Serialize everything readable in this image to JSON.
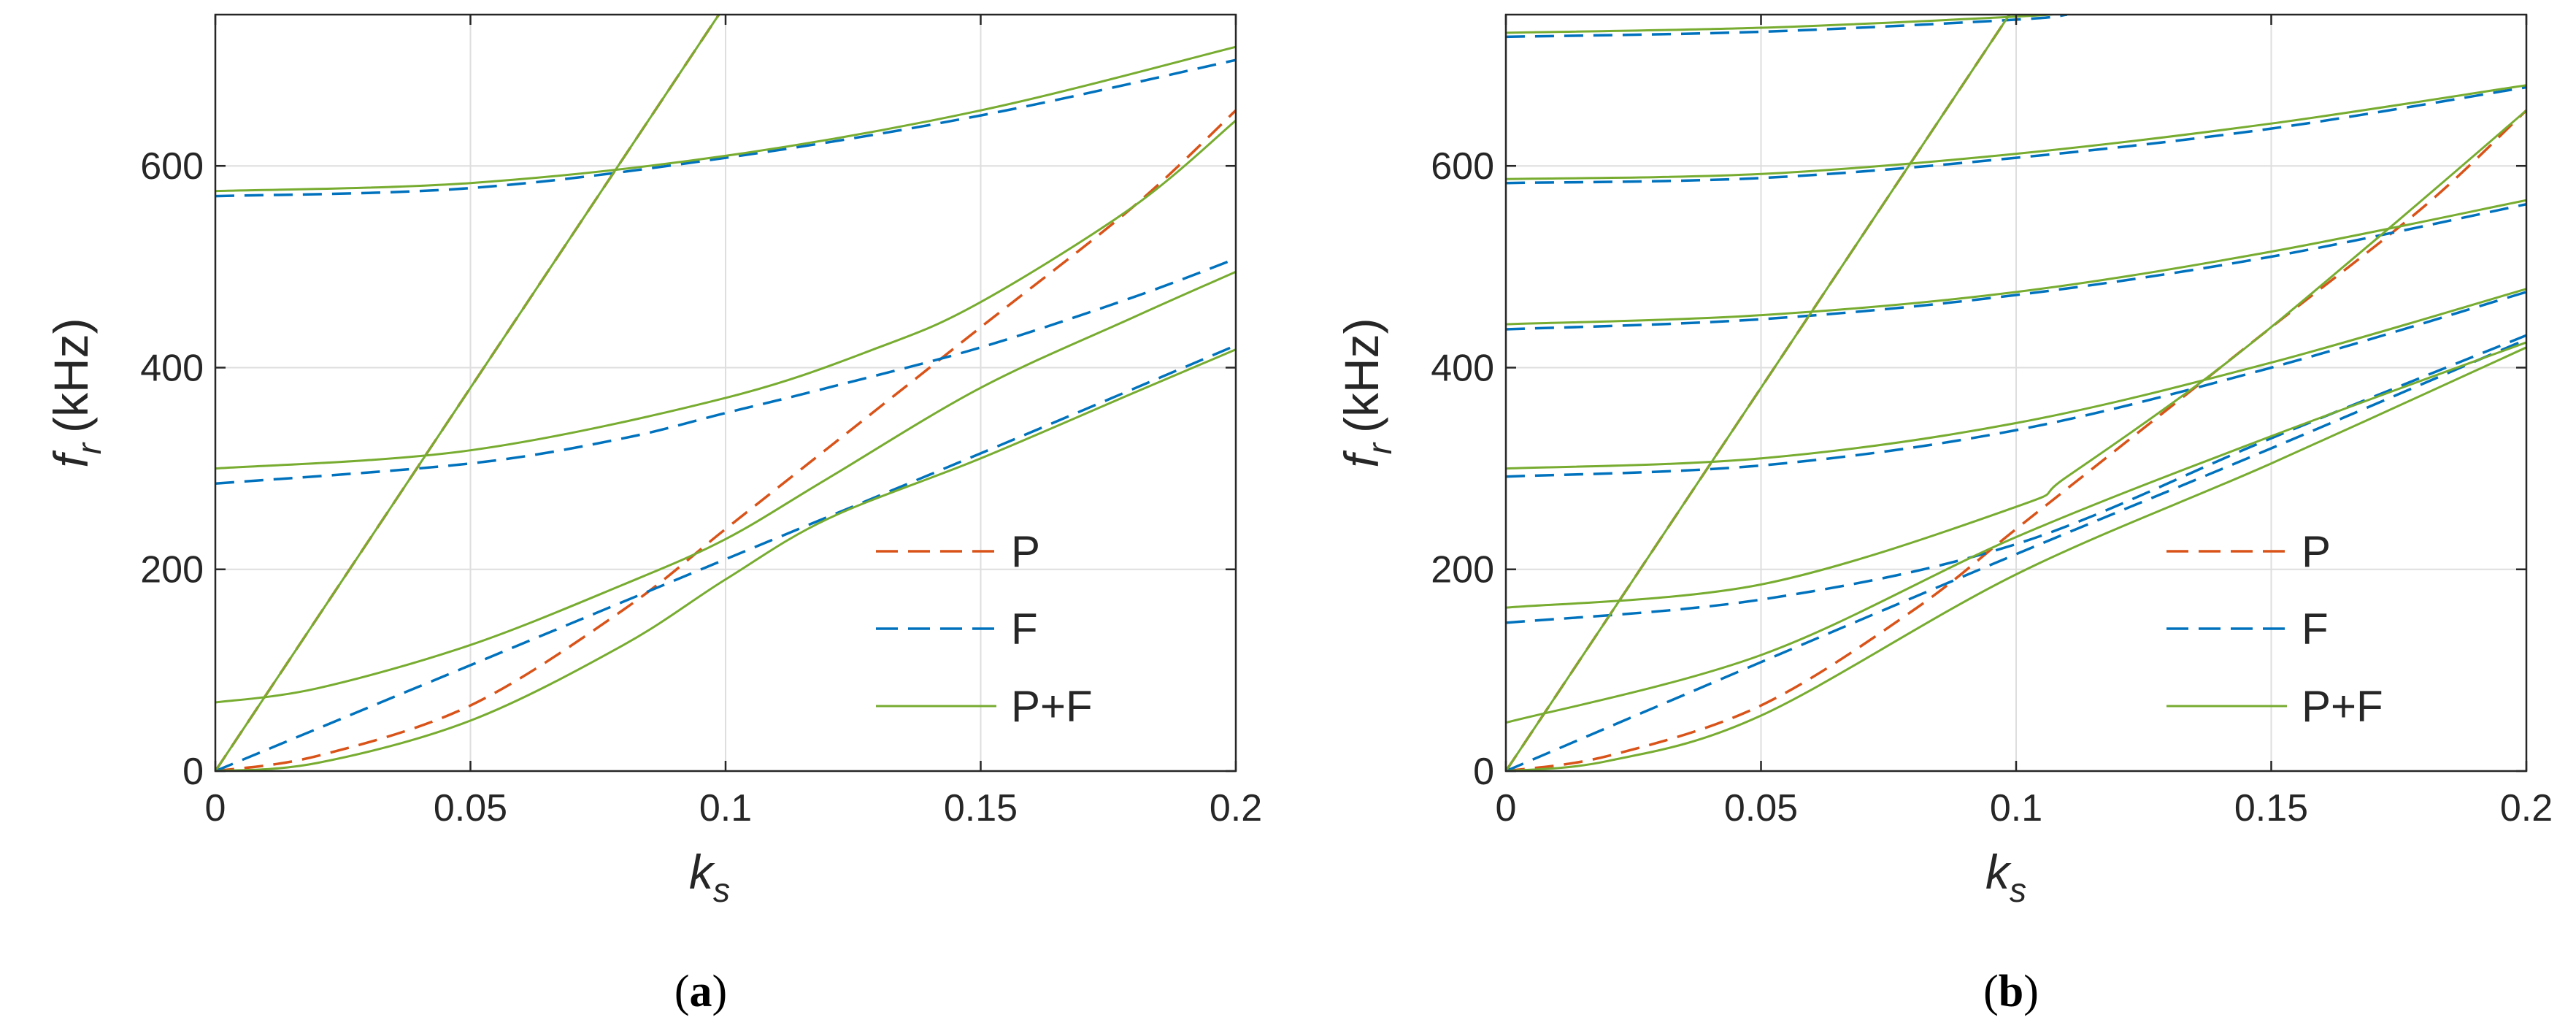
{
  "chart_data": [
    {
      "type": "line",
      "panel_label": "(a)",
      "panel_label_parts": {
        "open": "(",
        "letter": "a",
        "close": ")"
      },
      "ylabel": "f_r (kHz)",
      "ylabel_parts": {
        "main": "f",
        "sub": "r",
        "units": "(kHz)"
      },
      "xlabel": "k_s",
      "xlabel_parts": {
        "main": "k",
        "sub": "s"
      },
      "xlim": [
        0,
        0.2
      ],
      "ylim": [
        0,
        750
      ],
      "xticks": [
        0,
        0.05,
        0.1,
        0.15,
        0.2
      ],
      "xtick_labels": [
        "0",
        "0.05",
        "0.1",
        "0.15",
        "0.2"
      ],
      "yticks": [
        0,
        200,
        400,
        600
      ],
      "ytick_labels": [
        "0",
        "200",
        "400",
        "600"
      ],
      "grid": true,
      "legend_position": "right",
      "legend": [
        {
          "label": "P",
          "color": "#D95319",
          "style": "dashed"
        },
        {
          "label": "F",
          "color": "#0072BD",
          "style": "dashed"
        },
        {
          "label": "P+F",
          "color": "#77AC30",
          "style": "solid"
        }
      ],
      "series": [
        {
          "name": "P",
          "color": "#D95319",
          "style": "dashed",
          "curves": [
            {
              "x": [
                0,
                0.1
              ],
              "y": [
                0,
                760
              ]
            },
            {
              "x": [
                0,
                0.02,
                0.05,
                0.08,
                0.1,
                0.12,
                0.15,
                0.18,
                0.2
              ],
              "y": [
                0,
                15,
                65,
                160,
                240,
                320,
                440,
                560,
                655
              ]
            }
          ]
        },
        {
          "name": "F",
          "color": "#0072BD",
          "style": "dashed",
          "curves": [
            {
              "x": [
                0,
                0.05,
                0.1,
                0.15,
                0.2
              ],
              "y": [
                570,
                578,
                608,
                650,
                705
              ]
            },
            {
              "x": [
                0,
                0.05,
                0.08,
                0.1,
                0.12,
                0.15,
                0.18,
                0.2
              ],
              "y": [
                285,
                305,
                330,
                355,
                380,
                420,
                470,
                508
              ]
            },
            {
              "x": [
                0,
                0.05,
                0.1,
                0.15,
                0.2
              ],
              "y": [
                0,
                105,
                210,
                315,
                422
              ]
            }
          ]
        },
        {
          "name": "P+F",
          "color": "#77AC30",
          "style": "solid",
          "curves": [
            {
              "x": [
                0,
                0.1
              ],
              "y": [
                0,
                760
              ]
            },
            {
              "x": [
                0,
                0.05,
                0.1,
                0.15,
                0.2
              ],
              "y": [
                575,
                583,
                610,
                655,
                718
              ]
            },
            {
              "x": [
                0,
                0.05,
                0.1,
                0.13,
                0.15,
                0.18,
                0.2
              ],
              "y": [
                300,
                318,
                370,
                420,
                465,
                560,
                645
              ]
            },
            {
              "x": [
                0,
                0.02,
                0.05,
                0.08,
                0.1,
                0.12,
                0.15,
                0.18,
                0.2
              ],
              "y": [
                68,
                82,
                125,
                185,
                230,
                290,
                380,
                450,
                495
              ]
            },
            {
              "x": [
                0,
                0.02,
                0.05,
                0.08,
                0.1,
                0.12,
                0.15,
                0.18,
                0.2
              ],
              "y": [
                0,
                8,
                50,
                125,
                190,
                250,
                310,
                375,
                418
              ]
            }
          ]
        }
      ]
    },
    {
      "type": "line",
      "panel_label": "(b)",
      "panel_label_parts": {
        "open": "(",
        "letter": "b",
        "close": ")"
      },
      "ylabel": "f_r (kHz)",
      "ylabel_parts": {
        "main": "f",
        "sub": "r",
        "units": "(kHz)"
      },
      "xlabel": "k_s",
      "xlabel_parts": {
        "main": "k",
        "sub": "s"
      },
      "xlim": [
        0,
        0.2
      ],
      "ylim": [
        0,
        750
      ],
      "xticks": [
        0,
        0.05,
        0.1,
        0.15,
        0.2
      ],
      "xtick_labels": [
        "0",
        "0.05",
        "0.1",
        "0.15",
        "0.2"
      ],
      "yticks": [
        0,
        200,
        400,
        600
      ],
      "ytick_labels": [
        "0",
        "200",
        "400",
        "600"
      ],
      "grid": true,
      "legend_position": "right",
      "legend": [
        {
          "label": "P",
          "color": "#D95319",
          "style": "dashed"
        },
        {
          "label": "F",
          "color": "#0072BD",
          "style": "dashed"
        },
        {
          "label": "P+F",
          "color": "#77AC30",
          "style": "solid"
        }
      ],
      "series": [
        {
          "name": "P",
          "color": "#D95319",
          "style": "dashed",
          "curves": [
            {
              "x": [
                0,
                0.1
              ],
              "y": [
                0,
                760
              ]
            },
            {
              "x": [
                0,
                0.02,
                0.05,
                0.08,
                0.1,
                0.12,
                0.15,
                0.18,
                0.2
              ],
              "y": [
                0,
                15,
                65,
                160,
                240,
                320,
                440,
                560,
                655
              ]
            }
          ]
        },
        {
          "name": "F",
          "color": "#0072BD",
          "style": "dashed",
          "curves": [
            {
              "x": [
                0,
                0.05,
                0.1,
                0.11
              ],
              "y": [
                728,
                733,
                745,
                750
              ]
            },
            {
              "x": [
                0,
                0.05,
                0.1,
                0.15,
                0.2
              ],
              "y": [
                583,
                588,
                608,
                637,
                678
              ]
            },
            {
              "x": [
                0,
                0.05,
                0.1,
                0.15,
                0.2
              ],
              "y": [
                438,
                448,
                472,
                510,
                562
              ]
            },
            {
              "x": [
                0,
                0.05,
                0.1,
                0.15,
                0.2
              ],
              "y": [
                292,
                303,
                338,
                400,
                475
              ]
            },
            {
              "x": [
                0,
                0.05,
                0.1,
                0.15,
                0.2
              ],
              "y": [
                147,
                170,
                225,
                330,
                432
              ]
            },
            {
              "x": [
                0,
                0.05,
                0.1,
                0.15,
                0.2
              ],
              "y": [
                0,
                108,
                215,
                320,
                428
              ]
            }
          ]
        },
        {
          "name": "P+F",
          "color": "#77AC30",
          "style": "solid",
          "curves": [
            {
              "x": [
                0,
                0.1
              ],
              "y": [
                0,
                760
              ]
            },
            {
              "x": [
                0,
                0.05,
                0.1,
                0.11
              ],
              "y": [
                732,
                737,
                748,
                752
              ]
            },
            {
              "x": [
                0,
                0.05,
                0.1,
                0.15,
                0.2
              ],
              "y": [
                587,
                592,
                612,
                642,
                680
              ]
            },
            {
              "x": [
                0,
                0.05,
                0.1,
                0.15,
                0.2
              ],
              "y": [
                443,
                452,
                475,
                515,
                566
              ]
            },
            {
              "x": [
                0,
                0.05,
                0.1,
                0.15,
                0.2
              ],
              "y": [
                300,
                310,
                345,
                405,
                478
              ]
            },
            {
              "x": [
                0,
                0.05,
                0.1,
                0.11,
                0.14,
                0.17,
                0.2
              ],
              "y": [
                162,
                185,
                262,
                292,
                400,
                525,
                655
              ]
            },
            {
              "x": [
                0,
                0.05,
                0.1,
                0.15,
                0.2
              ],
              "y": [
                48,
                115,
                232,
                332,
                425
              ]
            },
            {
              "x": [
                0,
                0.02,
                0.05,
                0.1,
                0.15,
                0.2
              ],
              "y": [
                0,
                10,
                55,
                195,
                305,
                420
              ]
            }
          ]
        }
      ]
    }
  ]
}
